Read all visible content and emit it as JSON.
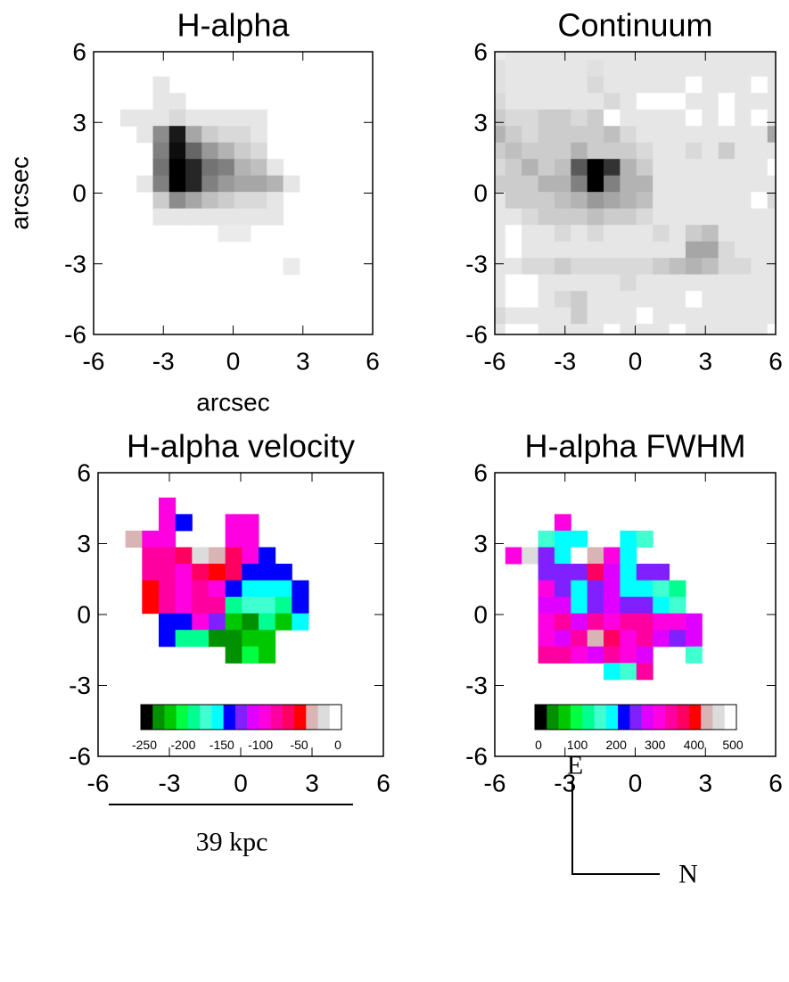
{
  "chart_data": [
    {
      "type": "heatmap",
      "title": "H-alpha",
      "xlabel": "arcsec",
      "ylabel": "arcsec",
      "colormap": "gray_r",
      "xlim": [
        -6,
        6
      ],
      "ylim": [
        -6,
        6
      ],
      "xticks": [
        -6,
        -3,
        0,
        3,
        6
      ],
      "yticks": [
        -6,
        -3,
        0,
        3,
        6
      ],
      "x": [
        -4.5,
        -3.8,
        -3.1,
        -2.4,
        -1.7,
        -1.0,
        -0.3,
        0.4,
        1.1,
        1.8,
        2.5
      ],
      "y": [
        4.6,
        3.9,
        3.2,
        2.5,
        1.8,
        1.1,
        0.4,
        -0.3,
        -1.0,
        -1.7,
        -2.4,
        -3.1
      ],
      "z": [
        [
          null,
          null,
          0.1,
          null,
          null,
          null,
          null,
          null,
          null,
          null,
          null
        ],
        [
          null,
          null,
          0.1,
          0.1,
          null,
          null,
          null,
          null,
          null,
          null,
          null
        ],
        [
          0.1,
          0.1,
          0.1,
          0.15,
          0.1,
          0.1,
          0.1,
          0.1,
          0.1,
          null,
          null
        ],
        [
          null,
          0.1,
          0.45,
          0.9,
          0.35,
          0.2,
          0.15,
          0.15,
          0.1,
          null,
          null
        ],
        [
          null,
          null,
          0.5,
          0.95,
          0.6,
          0.4,
          0.3,
          0.2,
          0.15,
          null,
          null
        ],
        [
          null,
          null,
          0.55,
          1.0,
          0.85,
          0.55,
          0.5,
          0.3,
          0.25,
          0.1,
          null
        ],
        [
          null,
          0.1,
          0.5,
          1.0,
          0.85,
          0.5,
          0.4,
          0.35,
          0.35,
          0.3,
          0.1
        ],
        [
          null,
          null,
          0.2,
          0.45,
          0.35,
          0.25,
          0.2,
          0.15,
          0.15,
          0.1,
          null
        ],
        [
          null,
          null,
          0.1,
          0.1,
          0.1,
          0.1,
          0.1,
          0.1,
          0.1,
          0.1,
          null
        ],
        [
          null,
          null,
          null,
          null,
          null,
          null,
          0.08,
          0.08,
          null,
          null,
          null
        ],
        [
          null,
          null,
          null,
          null,
          null,
          null,
          null,
          null,
          null,
          null,
          null
        ],
        [
          null,
          null,
          null,
          null,
          null,
          null,
          null,
          null,
          null,
          null,
          0.08
        ]
      ]
    },
    {
      "type": "heatmap",
      "title": "Continuum",
      "colormap": "gray_r",
      "xlim": [
        -6,
        6
      ],
      "ylim": [
        -6,
        6
      ],
      "xticks": [
        -6,
        -3,
        0,
        3,
        6
      ],
      "yticks": [
        -6,
        -3,
        0,
        3,
        6
      ],
      "x": [
        -5.9,
        -5.2,
        -4.5,
        -3.8,
        -3.1,
        -2.4,
        -1.7,
        -1.0,
        -0.3,
        0.4,
        1.1,
        1.8,
        2.5,
        3.2,
        3.9,
        4.6,
        5.3,
        6.0
      ],
      "y": [
        6.0,
        5.3,
        4.6,
        3.9,
        3.2,
        2.5,
        1.8,
        1.1,
        0.4,
        -0.3,
        -1.0,
        -1.7,
        -2.4,
        -3.1,
        -3.8,
        -4.5,
        -5.2,
        -5.9
      ],
      "z": [
        [
          0.08,
          0.1,
          0.1,
          0.1,
          0.1,
          0.1,
          0.1,
          0.1,
          0.1,
          0.1,
          0.1,
          0.1,
          0.1,
          0.1,
          0.1,
          0.1,
          0.1,
          0.1
        ],
        [
          0.12,
          0.1,
          0.1,
          0.1,
          0.1,
          0.1,
          0.12,
          0.1,
          0.1,
          0.1,
          0.1,
          0.1,
          0.1,
          0.1,
          0.1,
          0.1,
          0.1,
          0.1
        ],
        [
          0.12,
          0.1,
          0.1,
          0.1,
          0.1,
          0.1,
          0.15,
          0.1,
          0.1,
          0.1,
          0.1,
          0.1,
          0,
          0.1,
          0.1,
          0.1,
          0,
          0.1
        ],
        [
          0.15,
          0.1,
          0.1,
          0.1,
          0.1,
          0.1,
          0.1,
          0.15,
          0.1,
          0,
          0,
          0,
          0.1,
          0.1,
          0,
          0.1,
          0.1,
          0.1
        ],
        [
          0.2,
          0.15,
          0.15,
          0.2,
          0.2,
          0.15,
          0.2,
          0,
          0.1,
          0.1,
          0.1,
          0.1,
          0,
          0.1,
          0,
          0.1,
          0,
          0.1
        ],
        [
          0.3,
          0.2,
          0.15,
          0.2,
          0.2,
          0.2,
          0.2,
          0.25,
          0.15,
          0.1,
          0.1,
          0.1,
          0.1,
          0.1,
          0.1,
          0.1,
          0.1,
          0.35
        ],
        [
          0.2,
          0.25,
          0.2,
          0.2,
          0.2,
          0.3,
          0.2,
          0.2,
          0.2,
          0.15,
          0.1,
          0.1,
          0.15,
          0.1,
          0.2,
          0.1,
          0.1,
          0.1
        ],
        [
          0.15,
          0.2,
          0.3,
          0.2,
          0.25,
          0.65,
          1.0,
          0.8,
          0.3,
          0.2,
          0.1,
          0.1,
          0.1,
          0.1,
          0.1,
          0.1,
          0.1,
          0
        ],
        [
          0.2,
          0.2,
          0.2,
          0.3,
          0.3,
          0.5,
          1.0,
          0.5,
          0.3,
          0.3,
          0.1,
          0.1,
          0.1,
          0.1,
          0.1,
          0.1,
          0.1,
          0.1
        ],
        [
          0.1,
          0.2,
          0.2,
          0.2,
          0.25,
          0.3,
          0.4,
          0.35,
          0.3,
          0.25,
          0.1,
          0.1,
          0.1,
          0.1,
          0.1,
          0.1,
          0,
          0.15
        ],
        [
          0.1,
          0.1,
          0.15,
          0.2,
          0.2,
          0.2,
          0.25,
          0.2,
          0.2,
          0.15,
          0.1,
          0.1,
          0.1,
          0.1,
          0.1,
          0.1,
          0.1,
          0.1
        ],
        [
          0.1,
          0,
          0.1,
          0.1,
          0.15,
          0.1,
          0.15,
          0.1,
          0.1,
          0.1,
          0.15,
          0.1,
          0.2,
          0.25,
          0.1,
          0.1,
          0.1,
          0.1
        ],
        [
          0.1,
          0,
          0.1,
          0.1,
          0.1,
          0.1,
          0.1,
          0.1,
          0.1,
          0.1,
          0.1,
          0.1,
          0.35,
          0.35,
          0.15,
          0.1,
          0.1,
          0.1
        ],
        [
          0.1,
          0.1,
          0.15,
          0.15,
          0.2,
          0.15,
          0.15,
          0.15,
          0.15,
          0.15,
          0.2,
          0.25,
          0.3,
          0.25,
          0.15,
          0.15,
          0.1,
          0.1
        ],
        [
          0.1,
          0,
          0,
          0.1,
          0.1,
          0.1,
          0.1,
          0.1,
          0.15,
          0.1,
          0.1,
          0.1,
          0.1,
          0.1,
          0.1,
          0.1,
          0.1,
          0.1
        ],
        [
          0.1,
          0,
          0,
          0.1,
          0.15,
          0.2,
          0.1,
          0.1,
          0.1,
          0.1,
          0.1,
          0.1,
          0,
          0.1,
          0.1,
          0.1,
          0.1,
          0.1
        ],
        [
          0.15,
          0.1,
          0.1,
          0.1,
          0.1,
          0.2,
          0.1,
          0.1,
          0.1,
          0,
          0.1,
          0.1,
          0.1,
          0.1,
          0.1,
          0.1,
          0.1,
          0.1
        ],
        [
          0.1,
          0,
          0,
          0.1,
          0.1,
          0.1,
          0.1,
          0,
          0.1,
          0.1,
          0.1,
          0,
          0.1,
          0.1,
          0.1,
          0.1,
          0.1,
          0
        ]
      ]
    },
    {
      "type": "heatmap",
      "title": "H-alpha velocity",
      "colormap": [
        "#000000",
        "#009000",
        "#00c800",
        "#00ff40",
        "#00ff90",
        "#40ffd0",
        "#00ffff",
        "#0000ff",
        "#8020ff",
        "#e000ff",
        "#ff00e0",
        "#ff00a0",
        "#ff0060",
        "#ff0000",
        "#d8b4b4",
        "#dcdcdc",
        "#ffffff"
      ],
      "clim": [
        -250,
        0
      ],
      "colorbar_ticks": [
        -250,
        -200,
        -150,
        -100,
        -50,
        0
      ],
      "xlim": [
        -6,
        6
      ],
      "ylim": [
        -6,
        6
      ],
      "xticks": [
        -6,
        -3,
        0,
        3,
        6
      ],
      "yticks": [
        -6,
        -3,
        0,
        3,
        6
      ],
      "x": [
        -4.5,
        -3.8,
        -3.1,
        -2.4,
        -1.7,
        -1.0,
        -0.3,
        0.4,
        1.1,
        1.8,
        2.5
      ],
      "y": [
        4.6,
        3.9,
        3.2,
        2.5,
        1.8,
        1.1,
        0.4,
        -0.3,
        -1.0,
        -1.7
      ],
      "z": [
        [
          null,
          null,
          -95,
          null,
          null,
          null,
          null,
          null,
          null,
          null,
          null
        ],
        [
          null,
          null,
          -95,
          -140,
          null,
          null,
          -100,
          -100,
          null,
          null,
          null
        ],
        [
          -35,
          -90,
          -95,
          null,
          null,
          null,
          -95,
          -100,
          null,
          null,
          null
        ],
        [
          null,
          -85,
          -80,
          -70,
          -20,
          -35,
          -70,
          -95,
          -135,
          null,
          null
        ],
        [
          null,
          -80,
          -75,
          -90,
          -60,
          -55,
          -70,
          -135,
          -135,
          -135,
          null
        ],
        [
          null,
          -50,
          -85,
          -90,
          -85,
          -90,
          -140,
          -160,
          -160,
          -160,
          -135
        ],
        [
          null,
          -50,
          -85,
          -90,
          -85,
          -75,
          -190,
          -170,
          -175,
          -180,
          -140
        ],
        [
          null,
          null,
          -140,
          -140,
          -100,
          -130,
          -210,
          -230,
          -190,
          -210,
          -160
        ],
        [
          null,
          null,
          -140,
          -180,
          -180,
          -230,
          -230,
          -220,
          -210,
          null,
          null
        ],
        [
          null,
          null,
          null,
          null,
          null,
          null,
          -225,
          -200,
          -210,
          null,
          null
        ]
      ]
    },
    {
      "type": "heatmap",
      "title": "H-alpha FWHM",
      "colormap": [
        "#000000",
        "#009000",
        "#00c800",
        "#00ff40",
        "#00ff90",
        "#40ffd0",
        "#00ffff",
        "#0000ff",
        "#8020ff",
        "#e000ff",
        "#ff00e0",
        "#ff00a0",
        "#ff0060",
        "#ff0000",
        "#d8b4b4",
        "#dcdcdc",
        "#ffffff"
      ],
      "clim": [
        0,
        500
      ],
      "colorbar_ticks": [
        0,
        100,
        200,
        300,
        400,
        500
      ],
      "xlim": [
        -6,
        6
      ],
      "ylim": [
        -6,
        6
      ],
      "xticks": [
        -6,
        -3,
        0,
        3,
        6
      ],
      "yticks": [
        -6,
        -3,
        0,
        3,
        6
      ],
      "x": [
        -5.2,
        -4.5,
        -3.8,
        -3.1,
        -2.4,
        -1.7,
        -1.0,
        -0.3,
        0.4,
        1.1,
        1.8,
        2.5
      ],
      "y": [
        3.9,
        3.2,
        2.5,
        1.8,
        1.1,
        0.4,
        -0.3,
        -1.0,
        -1.7,
        -2.4
      ],
      "z": [
        [
          null,
          null,
          null,
          300,
          null,
          null,
          null,
          null,
          null,
          null,
          null,
          null
        ],
        [
          null,
          null,
          160,
          205,
          200,
          null,
          null,
          205,
          165,
          null,
          null,
          null
        ],
        [
          310,
          450,
          240,
          200,
          480,
          420,
          300,
          200,
          null,
          null,
          null,
          null
        ],
        [
          null,
          null,
          240,
          245,
          245,
          380,
          290,
          205,
          240,
          240,
          null,
          null
        ],
        [
          null,
          null,
          320,
          240,
          205,
          250,
          280,
          200,
          205,
          160,
          120,
          null
        ],
        [
          null,
          null,
          290,
          280,
          200,
          250,
          290,
          260,
          250,
          200,
          160,
          null
        ],
        [
          null,
          null,
          300,
          330,
          290,
          340,
          320,
          330,
          350,
          300,
          310,
          290
        ],
        [
          null,
          null,
          300,
          290,
          330,
          420,
          360,
          300,
          330,
          290,
          250,
          290
        ],
        [
          null,
          null,
          330,
          330,
          300,
          290,
          330,
          300,
          290,
          null,
          null,
          165
        ],
        [
          null,
          null,
          null,
          null,
          null,
          null,
          200,
          160,
          330,
          null,
          null,
          null
        ]
      ]
    }
  ],
  "scale_bar": {
    "label": "39 kpc"
  },
  "compass": {
    "east": "E",
    "north": "N"
  }
}
